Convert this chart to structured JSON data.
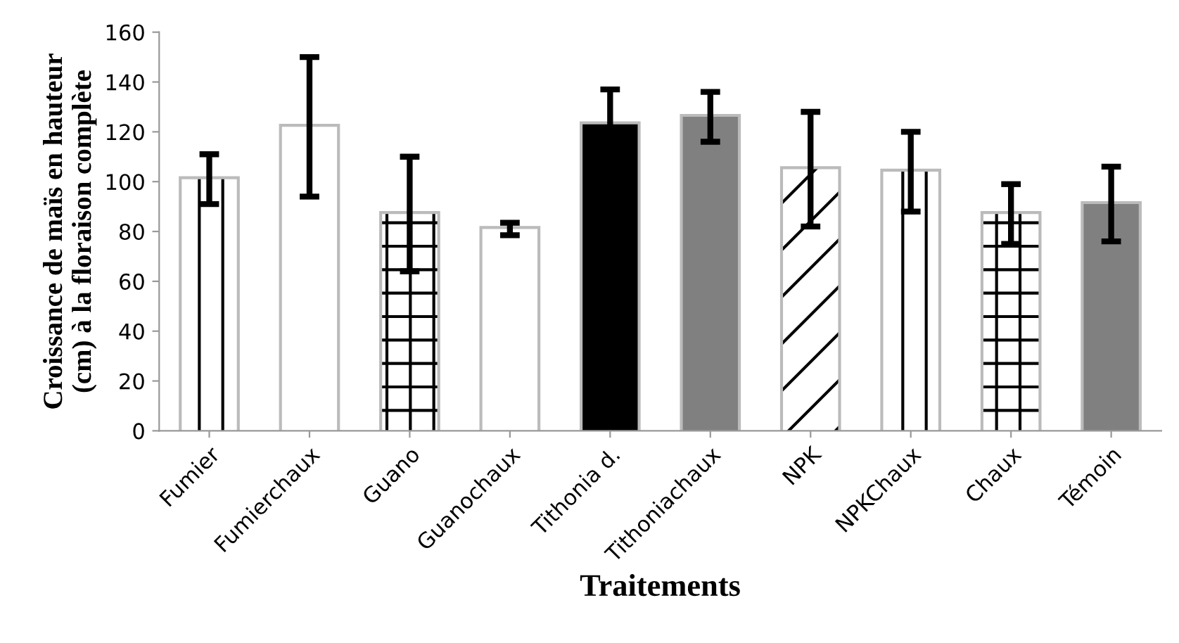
{
  "chart_data": {
    "type": "bar",
    "xlabel": "Traitements",
    "ylabel": "Croissance de maïs en hauteur\n(cm) à la floraison complète",
    "categories": [
      "Fumier",
      "Fumierchaux",
      "Guano",
      "Guanochaux",
      "Tithonia d.",
      "Tithoniachaux",
      "NPK",
      "NPKChaux",
      "Chaux",
      "Témoin"
    ],
    "values": [
      101,
      122,
      87,
      81,
      123,
      126,
      105,
      104,
      87,
      91
    ],
    "errors": [
      10,
      28,
      23,
      2.5,
      14,
      10,
      23,
      16,
      12,
      15
    ],
    "colors": [
      "#ffffff",
      "#ffffff",
      "#ffffff",
      "#ffffff",
      "#000000",
      "#808080",
      "#ffffff",
      "#ffffff",
      "#ffffff",
      "#808080"
    ],
    "ylim": [
      0,
      160
    ],
    "yticks": [
      0,
      20,
      40,
      60,
      80,
      100,
      120,
      140,
      160
    ],
    "grid": false,
    "legend": false
  }
}
